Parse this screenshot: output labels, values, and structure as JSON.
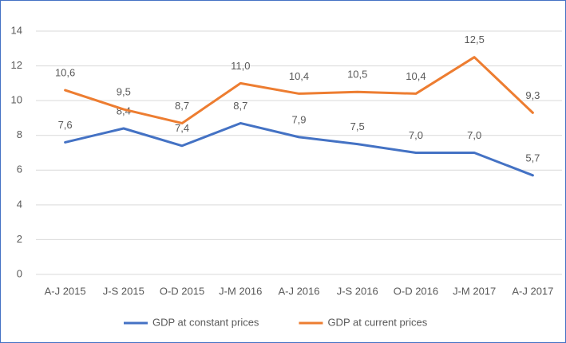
{
  "chart_data": {
    "type": "line",
    "categories": [
      "A-J 2015",
      "J-S 2015",
      "O-D 2015",
      "J-M 2016",
      "A-J 2016",
      "J-S 2016",
      "O-D 2016",
      "J-M 2017",
      "A-J 2017"
    ],
    "series": [
      {
        "name": "GDP at constant prices",
        "color": "#4472c4",
        "values": [
          7.6,
          8.4,
          7.4,
          8.7,
          7.9,
          7.5,
          7.0,
          7.0,
          5.7
        ],
        "value_labels": [
          "7,6",
          "8,4",
          "7,4",
          "8,7",
          "7,9",
          "7,5",
          "7,0",
          "7,0",
          "5,7"
        ]
      },
      {
        "name": "GDP at current prices",
        "color": "#ed7d31",
        "values": [
          10.6,
          9.5,
          8.7,
          11.0,
          10.4,
          10.5,
          10.4,
          12.5,
          9.3
        ],
        "value_labels": [
          "10,6",
          "9,5",
          "8,7",
          "11,0",
          "10,4",
          "10,5",
          "10,4",
          "12,5",
          "9,3"
        ]
      }
    ],
    "ylim": [
      0,
      14
    ],
    "yticks": [
      0,
      2,
      4,
      6,
      8,
      10,
      12,
      14
    ],
    "grid": true,
    "legend": "bottom"
  }
}
